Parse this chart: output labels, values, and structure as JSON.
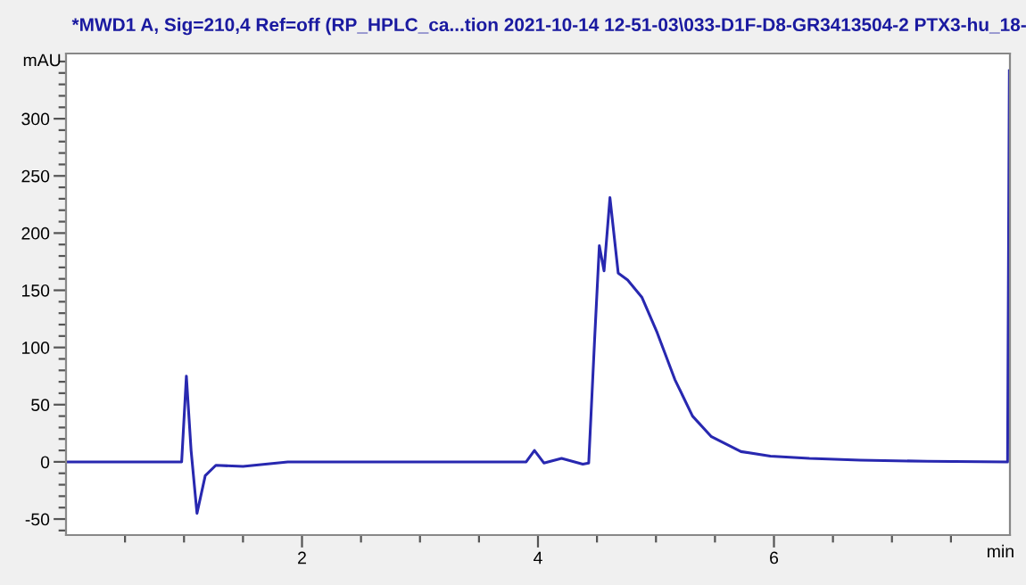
{
  "chart_data": {
    "type": "line",
    "title": "*MWD1 A, Sig=210,4 Ref=off (RP_HPLC_ca...tion 2021-10-14 12-51-03\\033-D1F-D8-GR3413504-2 PTX3-hu_18-",
    "xlabel": "min",
    "ylabel": "mAU",
    "x": [
      0,
      0.5,
      0.98,
      1.02,
      1.06,
      1.11,
      1.18,
      1.27,
      1.5,
      1.88,
      2.5,
      3.0,
      3.5,
      3.9,
      3.97,
      4.05,
      4.2,
      4.38,
      4.43,
      4.48,
      4.52,
      4.56,
      4.61,
      4.68,
      4.76,
      4.88,
      5.01,
      5.16,
      5.31,
      5.47,
      5.72,
      5.97,
      6.3,
      6.73,
      7.3,
      7.98,
      7.995
    ],
    "series": [
      {
        "color": "#2828b0",
        "values": [
          0,
          0,
          0,
          75,
          10,
          -45,
          -12,
          -3,
          -4,
          0,
          0,
          0,
          0,
          0,
          10,
          -1,
          3,
          -2,
          -1,
          107,
          189,
          167,
          231,
          165,
          159,
          144,
          113,
          72,
          40,
          22,
          9,
          5,
          3,
          1.5,
          0.5,
          0,
          342
        ]
      }
    ],
    "xlim": [
      0,
      8
    ],
    "ylim": [
      -64,
      357
    ],
    "xticks": [
      {
        "value": 0.5,
        "label": null
      },
      {
        "value": 1,
        "label": null
      },
      {
        "value": 1.5,
        "label": null
      },
      2,
      {
        "value": 2.5,
        "label": null
      },
      {
        "value": 3,
        "label": null
      },
      {
        "value": 3.5,
        "label": null
      },
      4,
      {
        "value": 4.5,
        "label": null
      },
      {
        "value": 5,
        "label": null
      },
      {
        "value": 5.5,
        "label": null
      },
      6,
      {
        "value": 6.5,
        "label": null
      },
      {
        "value": 7,
        "label": null
      },
      {
        "value": 7.5,
        "label": null
      }
    ],
    "yticks": [
      {
        "value": -60,
        "label": null
      },
      -50,
      {
        "value": -40,
        "label": null
      },
      {
        "value": -30,
        "label": null
      },
      {
        "value": -20,
        "label": null
      },
      {
        "value": -10,
        "label": null
      },
      0,
      {
        "value": 10,
        "label": null
      },
      {
        "value": 20,
        "label": null
      },
      {
        "value": 30,
        "label": null
      },
      {
        "value": 40,
        "label": null
      },
      50,
      {
        "value": 60,
        "label": null
      },
      {
        "value": 70,
        "label": null
      },
      {
        "value": 80,
        "label": null
      },
      {
        "value": 90,
        "label": null
      },
      100,
      {
        "value": 110,
        "label": null
      },
      {
        "value": 120,
        "label": null
      },
      {
        "value": 130,
        "label": null
      },
      {
        "value": 140,
        "label": null
      },
      150,
      {
        "value": 160,
        "label": null
      },
      {
        "value": 170,
        "label": null
      },
      {
        "value": 180,
        "label": null
      },
      {
        "value": 190,
        "label": null
      },
      200,
      {
        "value": 210,
        "label": null
      },
      {
        "value": 220,
        "label": null
      },
      {
        "value": 230,
        "label": null
      },
      {
        "value": 240,
        "label": null
      },
      250,
      {
        "value": 260,
        "label": null
      },
      {
        "value": 270,
        "label": null
      },
      {
        "value": 280,
        "label": null
      },
      {
        "value": 290,
        "label": null
      },
      300,
      {
        "value": 310,
        "label": null
      },
      {
        "value": 320,
        "label": null
      },
      {
        "value": 330,
        "label": null
      },
      {
        "value": 340,
        "label": null
      },
      {
        "value": 350,
        "label": null
      }
    ],
    "grid": false,
    "legend": false
  }
}
